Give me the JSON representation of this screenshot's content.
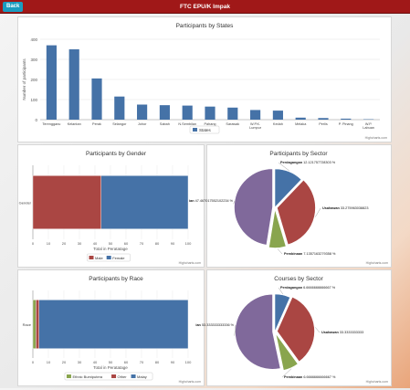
{
  "header": {
    "back_label": "Back",
    "title": "FTC EPU/K Impak"
  },
  "credits": "Highcharts.com",
  "chart_data": [
    {
      "type": "bar",
      "title": "Participants by States",
      "ylabel": "Number of participants",
      "categories": [
        "Terengganu",
        "Kelantan",
        "Perak",
        "Selangor",
        "Johor",
        "Sabah",
        "N.Sembilan",
        "Pahang",
        "Sarawak",
        "W.P.K. Lumpur",
        "Kedah",
        "Melaka",
        "Perlis",
        "P. Pinang",
        "W.P. Labuan"
      ],
      "values": [
        370,
        350,
        205,
        115,
        75,
        72,
        70,
        65,
        60,
        48,
        45,
        10,
        8,
        5,
        2
      ],
      "ylim": [
        0,
        400
      ],
      "yticks": [
        0,
        100,
        200,
        300,
        400
      ],
      "legend": "bottom",
      "series": [
        {
          "name": "States",
          "color": "#4572a7"
        }
      ],
      "grid": true
    },
    {
      "type": "bar",
      "orientation": "horizontal-stacked",
      "title": "Participants by Gender",
      "xlabel": "Total in Peratatage",
      "categories": [
        "Gender"
      ],
      "xticks": [
        0,
        10,
        20,
        30,
        40,
        50,
        60,
        70,
        80,
        90,
        100
      ],
      "xlim": [
        0,
        100
      ],
      "legend": "bottom",
      "series": [
        {
          "name": "Male",
          "values": [
            44
          ],
          "color": "#aa4643"
        },
        {
          "name": "Female",
          "values": [
            56
          ],
          "color": "#4572a7"
        }
      ]
    },
    {
      "type": "pie",
      "title": "Participants by Sector",
      "slices": [
        {
          "label": "Perdagangan 12.121757728303 %",
          "value": 12.121757728303,
          "color": "#4572a7"
        },
        {
          "label": "Usahawan 33.275963038823",
          "value": 33.275963038823,
          "color": "#aa4643"
        },
        {
          "label": "Pembinaan 7.1357163279358 %",
          "value": 7.1357163279358,
          "color": "#89a54e"
        },
        {
          "label": "ian 47.467017552102234 %",
          "value": 47.467017552102234,
          "color": "#80699b"
        }
      ]
    },
    {
      "type": "bar",
      "orientation": "horizontal-stacked",
      "title": "Participants by Race",
      "xlabel": "Total in Peratatage",
      "categories": [
        "Race"
      ],
      "xticks": [
        0,
        10,
        20,
        30,
        40,
        50,
        60,
        70,
        80,
        90,
        100
      ],
      "xlim": [
        0,
        100
      ],
      "legend": "bottom",
      "series": [
        {
          "name": "Ethnic Bumiputera",
          "values": [
            2
          ],
          "color": "#89a54e"
        },
        {
          "name": "Other",
          "values": [
            2
          ],
          "color": "#aa4643"
        },
        {
          "name": "Malay",
          "values": [
            96
          ],
          "color": "#4572a7"
        }
      ]
    },
    {
      "type": "pie",
      "title": "Courses by Sector",
      "slices": [
        {
          "label": "Perdagangan 6.6666666666667 %",
          "value": 6.6666666666667,
          "color": "#4572a7"
        },
        {
          "label": "Usahawan 33.3333333333",
          "value": 33.3333333333,
          "color": "#aa4643"
        },
        {
          "label": "Pembinaan 6.6666666666667 %",
          "value": 6.6666666666667,
          "color": "#89a54e"
        },
        {
          "label": "ian 53.333333333336 %",
          "value": 53.333333333336,
          "color": "#80699b"
        }
      ]
    }
  ]
}
